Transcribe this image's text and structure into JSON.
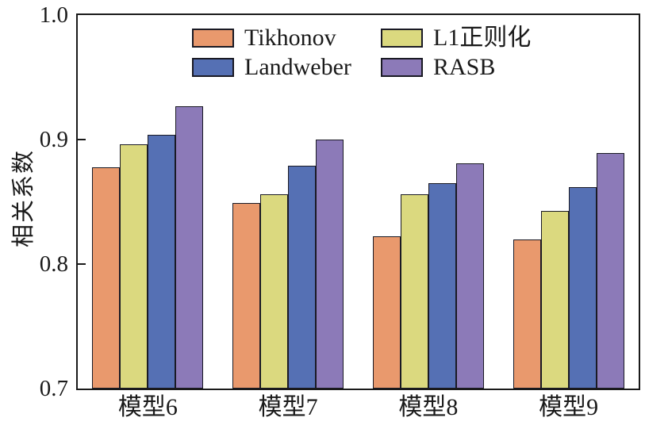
{
  "chart_data": {
    "type": "bar",
    "title": "",
    "xlabel": "",
    "ylabel": "相关系数",
    "categories": [
      "模型6",
      "模型7",
      "模型8",
      "模型9"
    ],
    "series": [
      {
        "name": "Tikhonov",
        "color": "#E9996D",
        "values": [
          0.878,
          0.849,
          0.822,
          0.82
        ]
      },
      {
        "name": "L1正则化",
        "color": "#DBD97F",
        "values": [
          0.896,
          0.856,
          0.856,
          0.843
        ]
      },
      {
        "name": "Landweber",
        "color": "#5570B4",
        "values": [
          0.904,
          0.879,
          0.865,
          0.862
        ]
      },
      {
        "name": "RASB",
        "color": "#8C7AB8",
        "values": [
          0.927,
          0.9,
          0.881,
          0.889
        ]
      }
    ],
    "ylim": [
      0.7,
      1.0
    ],
    "yticks": [
      0.7,
      0.8,
      0.9,
      1.0
    ],
    "ytick_labels": [
      "0.7",
      "0.8",
      "0.9",
      "1.0"
    ],
    "grid": false,
    "legend": {
      "position": "upper-center-inside",
      "columns": 2
    },
    "axis_color": "#1a1a1a",
    "bar_edge_color": "#1a1a24"
  }
}
